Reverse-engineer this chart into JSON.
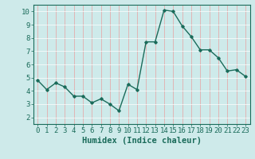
{
  "x": [
    0,
    1,
    2,
    3,
    4,
    5,
    6,
    7,
    8,
    9,
    10,
    11,
    12,
    13,
    14,
    15,
    16,
    17,
    18,
    19,
    20,
    21,
    22,
    23
  ],
  "y": [
    4.8,
    4.1,
    4.6,
    4.3,
    3.6,
    3.6,
    3.1,
    3.4,
    3.0,
    2.5,
    4.5,
    4.1,
    7.7,
    7.7,
    10.1,
    10.0,
    8.9,
    8.1,
    7.1,
    7.1,
    6.5,
    5.5,
    5.6,
    5.1
  ],
  "line_color": "#1a6b5a",
  "marker": "D",
  "marker_size": 1.8,
  "bg_color": "#ceeaea",
  "grid_color_major": "#e8a0a0",
  "grid_color_minor": "#ffffff",
  "xlabel": "Humidex (Indice chaleur)",
  "xlim": [
    -0.5,
    23.5
  ],
  "ylim": [
    1.5,
    10.5
  ],
  "yticks": [
    2,
    3,
    4,
    5,
    6,
    7,
    8,
    9,
    10
  ],
  "xticks": [
    0,
    1,
    2,
    3,
    4,
    5,
    6,
    7,
    8,
    9,
    10,
    11,
    12,
    13,
    14,
    15,
    16,
    17,
    18,
    19,
    20,
    21,
    22,
    23
  ],
  "tick_color": "#1a6b5a",
  "label_fontsize": 6.5,
  "xlabel_fontsize": 7.5,
  "linewidth": 1.0
}
